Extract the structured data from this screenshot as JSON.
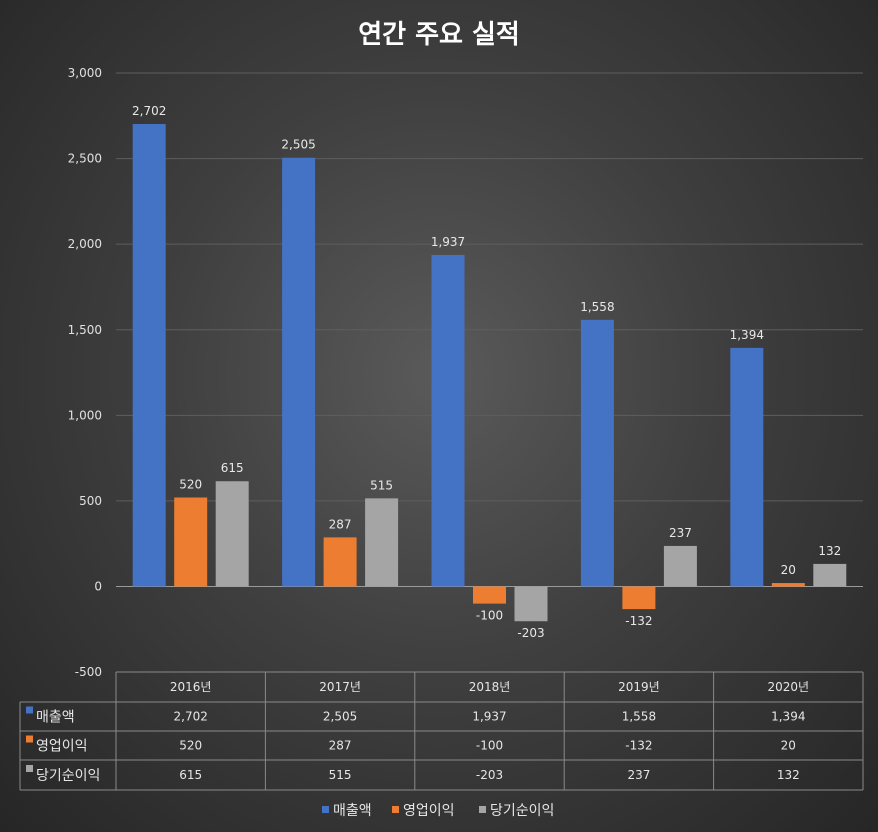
{
  "chart_data": {
    "type": "bar",
    "title": "연간 주요 실적",
    "categories": [
      "2016년",
      "2017년",
      "2018년",
      "2019년",
      "2020년"
    ],
    "series": [
      {
        "name": "매출액",
        "values": [
          2702,
          2505,
          1937,
          1558,
          1394
        ],
        "labels": [
          "2,702",
          "2,505",
          "1,937",
          "1,558",
          "1,394"
        ],
        "color": "#4472C4"
      },
      {
        "name": "영업이익",
        "values": [
          520,
          287,
          -100,
          -132,
          20
        ],
        "labels": [
          "520",
          "287",
          "-100",
          "-132",
          "20"
        ],
        "color": "#ED7D31"
      },
      {
        "name": "당기순이익",
        "values": [
          615,
          515,
          -203,
          237,
          132
        ],
        "labels": [
          "615",
          "515",
          "-203",
          "237",
          "132"
        ],
        "color": "#A5A5A5"
      }
    ],
    "ylim": [
      -500,
      3000
    ],
    "yticks": [
      {
        "value": 3000,
        "label": "3,000"
      },
      {
        "value": 2500,
        "label": "2,500"
      },
      {
        "value": 2000,
        "label": "2,000"
      },
      {
        "value": 1500,
        "label": "1,500"
      },
      {
        "value": 1000,
        "label": "1,000"
      },
      {
        "value": 500,
        "label": "500"
      },
      {
        "value": 0,
        "label": "0"
      },
      {
        "value": -500,
        "label": "-500"
      }
    ],
    "grid": true,
    "legend_position": "bottom",
    "data_table": true
  }
}
